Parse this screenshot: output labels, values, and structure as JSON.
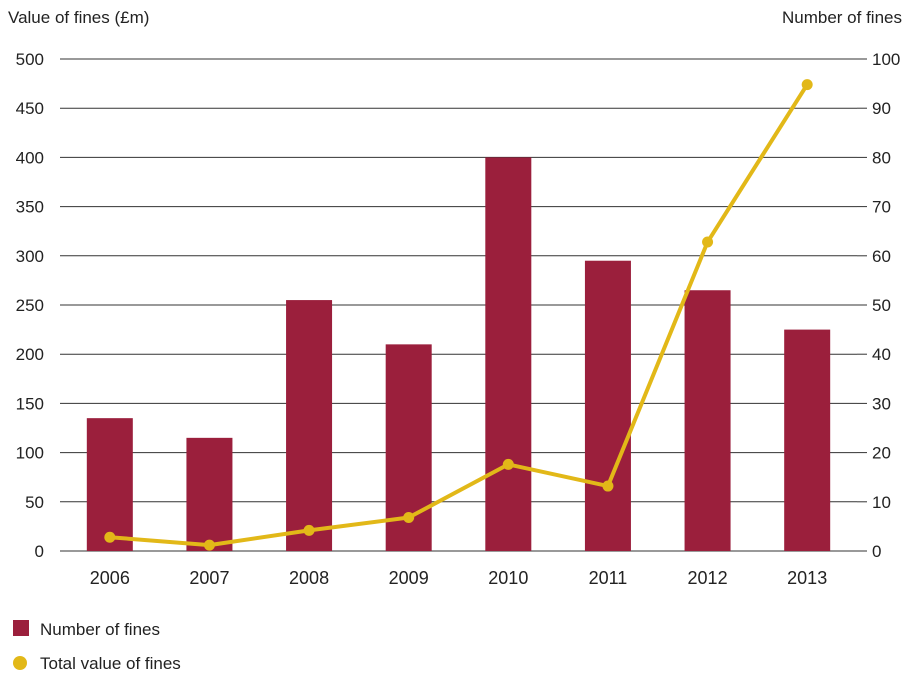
{
  "chart_data": {
    "type": "bar",
    "categories": [
      "2006",
      "2007",
      "2008",
      "2009",
      "2010",
      "2011",
      "2012",
      "2013"
    ],
    "y_left": {
      "label": "Value of fines (£m)",
      "range": [
        0,
        500
      ],
      "ticks": [
        0,
        50,
        100,
        150,
        200,
        250,
        300,
        350,
        400,
        450,
        500
      ]
    },
    "y_right": {
      "label": "Number of fines",
      "range": [
        0,
        100
      ],
      "ticks": [
        0,
        10,
        20,
        30,
        40,
        50,
        60,
        70,
        80,
        90,
        100
      ]
    },
    "grid": true,
    "legend_position": "bottom-left",
    "series": [
      {
        "name": "Number of fines",
        "kind": "bar",
        "axis": "right",
        "color": "#9b1f3c",
        "values": [
          27,
          23,
          51,
          42,
          80,
          59,
          53,
          45
        ]
      },
      {
        "name": "Total value of fines",
        "kind": "line",
        "axis": "left",
        "color": "#e2b818",
        "values": [
          14,
          6,
          21,
          34,
          88,
          66,
          314,
          474
        ]
      }
    ]
  }
}
